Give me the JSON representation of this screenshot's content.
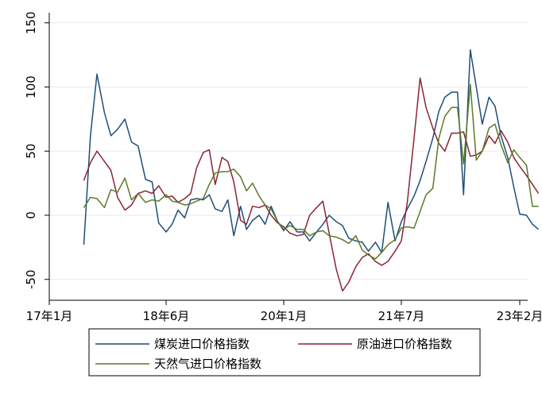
{
  "chart_data": {
    "type": "line",
    "title": "",
    "xlabel": "",
    "ylabel": "",
    "x_ticks": [
      "17年1月",
      "18年6月",
      "20年1月",
      "21年7月",
      "23年2月"
    ],
    "y_ticks": [
      "-50",
      "0",
      "50",
      "100",
      "150"
    ],
    "ylim": [
      -65,
      150
    ],
    "grid": true,
    "legend_position": "bottom",
    "series": [
      {
        "name": "煤炭进口价格指数",
        "color": "#1f4e79",
        "points": [
          [
            2017.42,
            -23
          ],
          [
            2017.5,
            62
          ],
          [
            2017.58,
            110
          ],
          [
            2017.67,
            80
          ],
          [
            2017.75,
            62
          ],
          [
            2017.83,
            67
          ],
          [
            2017.92,
            75
          ],
          [
            2018.0,
            57
          ],
          [
            2018.08,
            54
          ],
          [
            2018.17,
            28
          ],
          [
            2018.25,
            26
          ],
          [
            2018.33,
            -6
          ],
          [
            2018.42,
            -13
          ],
          [
            2018.5,
            -7
          ],
          [
            2018.58,
            4
          ],
          [
            2018.67,
            -2
          ],
          [
            2018.75,
            12
          ],
          [
            2018.83,
            13
          ],
          [
            2018.92,
            12
          ],
          [
            2019.0,
            16
          ],
          [
            2019.08,
            5
          ],
          [
            2019.17,
            3
          ],
          [
            2019.25,
            12
          ],
          [
            2019.33,
            -16
          ],
          [
            2019.42,
            7
          ],
          [
            2019.5,
            -11
          ],
          [
            2019.58,
            -4
          ],
          [
            2019.67,
            0
          ],
          [
            2019.75,
            -7
          ],
          [
            2019.83,
            7
          ],
          [
            2019.92,
            -5
          ],
          [
            2020.0,
            -12
          ],
          [
            2020.08,
            -5
          ],
          [
            2020.17,
            -13
          ],
          [
            2020.25,
            -13
          ],
          [
            2020.33,
            -20
          ],
          [
            2020.42,
            -13
          ],
          [
            2020.5,
            -7
          ],
          [
            2020.58,
            0
          ],
          [
            2020.67,
            -5
          ],
          [
            2020.75,
            -8
          ],
          [
            2020.83,
            -18
          ],
          [
            2020.92,
            -20
          ],
          [
            2021.0,
            -21
          ],
          [
            2021.08,
            -28
          ],
          [
            2021.17,
            -21
          ],
          [
            2021.25,
            -29
          ],
          [
            2021.33,
            10
          ],
          [
            2021.42,
            -20
          ],
          [
            2021.5,
            -5
          ],
          [
            2021.58,
            5
          ],
          [
            2021.67,
            15
          ],
          [
            2021.75,
            27
          ],
          [
            2021.83,
            42
          ],
          [
            2021.92,
            60
          ],
          [
            2022.0,
            81
          ],
          [
            2022.08,
            92
          ],
          [
            2022.17,
            96
          ],
          [
            2022.25,
            96
          ],
          [
            2022.33,
            16
          ],
          [
            2022.42,
            129
          ],
          [
            2022.5,
            100
          ],
          [
            2022.58,
            71
          ],
          [
            2022.67,
            92
          ],
          [
            2022.75,
            85
          ],
          [
            2022.83,
            62
          ],
          [
            2022.92,
            45
          ],
          [
            2023.0,
            22
          ],
          [
            2023.08,
            1
          ],
          [
            2023.17,
            0
          ],
          [
            2023.25,
            -7
          ],
          [
            2023.33,
            -11
          ]
        ]
      },
      {
        "name": "原油进口价格指数",
        "color": "#8b2434",
        "points": [
          [
            2017.42,
            27
          ],
          [
            2017.5,
            41
          ],
          [
            2017.58,
            50
          ],
          [
            2017.67,
            42
          ],
          [
            2017.75,
            35
          ],
          [
            2017.83,
            14
          ],
          [
            2017.92,
            4
          ],
          [
            2018.0,
            8
          ],
          [
            2018.08,
            17
          ],
          [
            2018.17,
            19
          ],
          [
            2018.25,
            17
          ],
          [
            2018.33,
            23
          ],
          [
            2018.42,
            14
          ],
          [
            2018.5,
            15
          ],
          [
            2018.58,
            10
          ],
          [
            2018.67,
            13
          ],
          [
            2018.75,
            17
          ],
          [
            2018.83,
            37
          ],
          [
            2018.92,
            49
          ],
          [
            2019.0,
            51
          ],
          [
            2019.08,
            24
          ],
          [
            2019.17,
            45
          ],
          [
            2019.25,
            42
          ],
          [
            2019.33,
            26
          ],
          [
            2019.42,
            -4
          ],
          [
            2019.5,
            -7
          ],
          [
            2019.58,
            7
          ],
          [
            2019.67,
            6
          ],
          [
            2019.75,
            8
          ],
          [
            2019.83,
            0
          ],
          [
            2019.92,
            -6
          ],
          [
            2020.0,
            -9
          ],
          [
            2020.08,
            -14
          ],
          [
            2020.17,
            -16
          ],
          [
            2020.25,
            -15
          ],
          [
            2020.33,
            0
          ],
          [
            2020.42,
            6
          ],
          [
            2020.5,
            11
          ],
          [
            2020.58,
            -14
          ],
          [
            2020.67,
            -42
          ],
          [
            2020.75,
            -59
          ],
          [
            2020.83,
            -52
          ],
          [
            2020.92,
            -40
          ],
          [
            2021.0,
            -33
          ],
          [
            2021.08,
            -30
          ],
          [
            2021.17,
            -36
          ],
          [
            2021.25,
            -39
          ],
          [
            2021.33,
            -36
          ],
          [
            2021.42,
            -28
          ],
          [
            2021.5,
            -20
          ],
          [
            2021.58,
            10
          ],
          [
            2021.67,
            60
          ],
          [
            2021.75,
            107
          ],
          [
            2021.83,
            84
          ],
          [
            2021.92,
            68
          ],
          [
            2022.0,
            56
          ],
          [
            2022.08,
            50
          ],
          [
            2022.17,
            64
          ],
          [
            2022.25,
            64
          ],
          [
            2022.33,
            65
          ],
          [
            2022.42,
            46
          ],
          [
            2022.5,
            47
          ],
          [
            2022.58,
            50
          ],
          [
            2022.67,
            62
          ],
          [
            2022.75,
            56
          ],
          [
            2022.83,
            66
          ],
          [
            2022.92,
            57
          ],
          [
            2023.0,
            45
          ],
          [
            2023.08,
            38
          ],
          [
            2023.17,
            31
          ],
          [
            2023.25,
            24
          ],
          [
            2023.33,
            17
          ]
        ]
      },
      {
        "name": "天然气进口价格指数",
        "color": "#5a7a2a",
        "points": [
          [
            2017.42,
            6
          ],
          [
            2017.5,
            14
          ],
          [
            2017.58,
            13
          ],
          [
            2017.67,
            6
          ],
          [
            2017.75,
            20
          ],
          [
            2017.83,
            18
          ],
          [
            2017.92,
            29
          ],
          [
            2018.0,
            12
          ],
          [
            2018.08,
            17
          ],
          [
            2018.17,
            10
          ],
          [
            2018.25,
            12
          ],
          [
            2018.33,
            11
          ],
          [
            2018.42,
            16
          ],
          [
            2018.5,
            11
          ],
          [
            2018.58,
            10
          ],
          [
            2018.67,
            8
          ],
          [
            2018.75,
            9
          ],
          [
            2018.83,
            11
          ],
          [
            2018.92,
            13
          ],
          [
            2019.0,
            24
          ],
          [
            2019.08,
            33
          ],
          [
            2019.17,
            34
          ],
          [
            2019.25,
            34
          ],
          [
            2019.33,
            36
          ],
          [
            2019.42,
            30
          ],
          [
            2019.5,
            19
          ],
          [
            2019.58,
            25
          ],
          [
            2019.67,
            15
          ],
          [
            2019.75,
            8
          ],
          [
            2019.83,
            5
          ],
          [
            2019.92,
            -5
          ],
          [
            2020.0,
            -11
          ],
          [
            2020.08,
            -8
          ],
          [
            2020.17,
            -11
          ],
          [
            2020.25,
            -11
          ],
          [
            2020.33,
            -16
          ],
          [
            2020.42,
            -13
          ],
          [
            2020.5,
            -12
          ],
          [
            2020.58,
            -16
          ],
          [
            2020.67,
            -17
          ],
          [
            2020.75,
            -19
          ],
          [
            2020.83,
            -22
          ],
          [
            2020.92,
            -16
          ],
          [
            2021.0,
            -27
          ],
          [
            2021.08,
            -31
          ],
          [
            2021.17,
            -34
          ],
          [
            2021.25,
            -29
          ],
          [
            2021.33,
            -23
          ],
          [
            2021.42,
            -19
          ],
          [
            2021.5,
            -10
          ],
          [
            2021.58,
            -9
          ],
          [
            2021.67,
            -10
          ],
          [
            2021.75,
            3
          ],
          [
            2021.83,
            16
          ],
          [
            2021.92,
            21
          ],
          [
            2022.0,
            60
          ],
          [
            2022.08,
            77
          ],
          [
            2022.17,
            84
          ],
          [
            2022.25,
            84
          ],
          [
            2022.33,
            40
          ],
          [
            2022.42,
            102
          ],
          [
            2022.5,
            43
          ],
          [
            2022.58,
            50
          ],
          [
            2022.67,
            68
          ],
          [
            2022.75,
            71
          ],
          [
            2022.83,
            55
          ],
          [
            2022.92,
            41
          ],
          [
            2023.0,
            51
          ],
          [
            2023.08,
            45
          ],
          [
            2023.17,
            39
          ],
          [
            2023.25,
            7
          ],
          [
            2023.33,
            7
          ]
        ]
      }
    ]
  }
}
